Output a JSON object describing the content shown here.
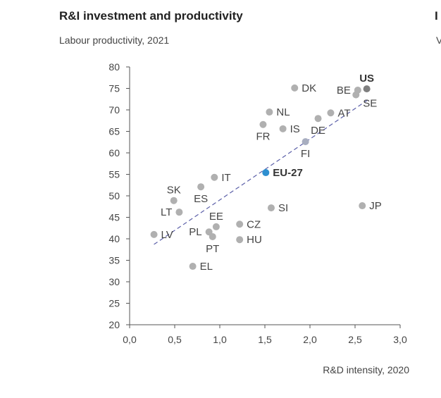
{
  "header": {
    "title": "R&I investment and productivity",
    "subtitle": "Labour productivity, 2021"
  },
  "next_panel": {
    "title": "I",
    "subtitle": "V"
  },
  "chart_data": {
    "type": "scatter",
    "title": "R&I investment and productivity",
    "ylabel": "Labour productivity, 2021",
    "xlabel": "R&D intensity, 2020",
    "xlim": [
      0,
      3
    ],
    "ylim": [
      20,
      80
    ],
    "xticks": [
      "0,0",
      "0,5",
      "1,0",
      "1,5",
      "2,0",
      "2,5",
      "3,0"
    ],
    "yticks": [
      "20",
      "25",
      "30",
      "35",
      "40",
      "45",
      "50",
      "55",
      "60",
      "65",
      "70",
      "75",
      "80"
    ],
    "points": [
      {
        "label": "US",
        "x": 2.63,
        "y": 74.9,
        "color": "#7f7f7f",
        "bold": true,
        "pos": "above"
      },
      {
        "label": "BE",
        "x": 2.53,
        "y": 74.6,
        "color": "#b0b0b0",
        "pos": "left"
      },
      {
        "label": "SE",
        "x": 2.51,
        "y": 73.5,
        "color": "#b0b0b0",
        "pos": "below-right"
      },
      {
        "label": "DK",
        "x": 1.83,
        "y": 75.1,
        "color": "#b0b0b0",
        "pos": "right"
      },
      {
        "label": "NL",
        "x": 1.55,
        "y": 69.5,
        "color": "#b0b0b0",
        "pos": "right"
      },
      {
        "label": "AT",
        "x": 2.23,
        "y": 69.3,
        "color": "#b0b0b0",
        "pos": "right"
      },
      {
        "label": "DE",
        "x": 2.09,
        "y": 68.0,
        "color": "#b0b0b0",
        "pos": "below"
      },
      {
        "label": "FR",
        "x": 1.48,
        "y": 66.6,
        "color": "#b0b0b0",
        "pos": "below"
      },
      {
        "label": "IS",
        "x": 1.7,
        "y": 65.6,
        "color": "#b0b0b0",
        "pos": "right"
      },
      {
        "label": "FI",
        "x": 1.95,
        "y": 62.6,
        "color": "#a8aec0",
        "pos": "below"
      },
      {
        "label": "EU-27",
        "x": 1.51,
        "y": 55.4,
        "color": "#2e8fd0",
        "bold": true,
        "pos": "right"
      },
      {
        "label": "IT",
        "x": 0.94,
        "y": 54.3,
        "color": "#b0b0b0",
        "pos": "right"
      },
      {
        "label": "ES",
        "x": 0.79,
        "y": 52.1,
        "color": "#b0b0b0",
        "pos": "below"
      },
      {
        "label": "SK",
        "x": 0.49,
        "y": 48.9,
        "color": "#b0b0b0",
        "pos": "above"
      },
      {
        "label": "LT",
        "x": 0.55,
        "y": 46.2,
        "color": "#b0b0b0",
        "pos": "left"
      },
      {
        "label": "SI",
        "x": 1.57,
        "y": 47.2,
        "color": "#b0b0b0",
        "pos": "right"
      },
      {
        "label": "JP",
        "x": 2.58,
        "y": 47.7,
        "color": "#b0b0b0",
        "pos": "right"
      },
      {
        "label": "CZ",
        "x": 1.22,
        "y": 43.4,
        "color": "#b0b0b0",
        "pos": "right"
      },
      {
        "label": "EE",
        "x": 0.96,
        "y": 42.8,
        "color": "#b0b0b0",
        "pos": "above"
      },
      {
        "label": "PL",
        "x": 0.88,
        "y": 41.6,
        "color": "#b0b0b0",
        "pos": "left"
      },
      {
        "label": "PT",
        "x": 0.92,
        "y": 40.5,
        "color": "#b0b0b0",
        "pos": "below"
      },
      {
        "label": "HU",
        "x": 1.22,
        "y": 39.8,
        "color": "#b0b0b0",
        "pos": "right"
      },
      {
        "label": "LV",
        "x": 0.27,
        "y": 41.0,
        "color": "#b0b0b0",
        "pos": "right"
      },
      {
        "label": "EL",
        "x": 0.7,
        "y": 33.6,
        "color": "#b0b0b0",
        "pos": "right"
      }
    ],
    "trendline": {
      "x": [
        0.27,
        2.64
      ],
      "y": [
        38.7,
        72.3
      ],
      "color": "#5b5fa8",
      "style": "dashed"
    },
    "grid": false
  }
}
